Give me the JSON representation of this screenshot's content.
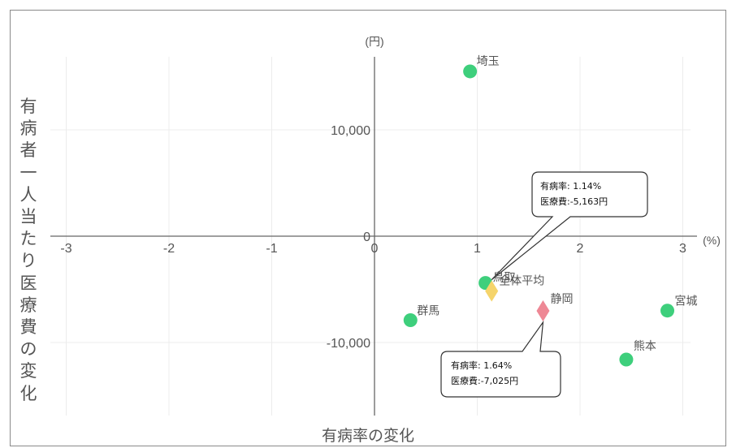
{
  "chart_data": {
    "type": "scatter",
    "xlabel": "有病率の変化",
    "ylabel": "有病者一人当たり医療費の変化",
    "x_unit": "(%)",
    "y_unit": "(円)",
    "xlim": [
      -3.2,
      3.2
    ],
    "ylim": [
      -17000,
      17000
    ],
    "x_ticks": [
      -3,
      -2,
      -1,
      0,
      1,
      2,
      3
    ],
    "y_ticks": [
      -10000,
      0,
      10000
    ],
    "y_tick_labels": [
      "-10,000",
      "0",
      "10,000"
    ],
    "grid": true,
    "points": [
      {
        "label": "埼玉",
        "x": 0.93,
        "y": 15500,
        "marker": "circle",
        "color": "#3ecf7c"
      },
      {
        "label": "鳥取",
        "x": 1.08,
        "y": -4400,
        "marker": "circle",
        "color": "#3ecf7c"
      },
      {
        "label": "群馬",
        "x": 0.35,
        "y": -7900,
        "marker": "circle",
        "color": "#3ecf7c"
      },
      {
        "label": "宮城",
        "x": 2.85,
        "y": -7000,
        "marker": "circle",
        "color": "#3ecf7c"
      },
      {
        "label": "熊本",
        "x": 2.45,
        "y": -11600,
        "marker": "circle",
        "color": "#3ecf7c"
      },
      {
        "label": "全体平均",
        "x": 1.14,
        "y": -5163,
        "marker": "diamond",
        "color": "#f5d46b"
      },
      {
        "label": "静岡",
        "x": 1.64,
        "y": -7025,
        "marker": "diamond",
        "color": "#ee8895"
      }
    ],
    "callouts": [
      {
        "line1": "有病率:  1.14%",
        "line2": "医療費:-5,163円"
      },
      {
        "line1": "有病率:  1.64%",
        "line2": "医療費:-7,025円"
      }
    ]
  }
}
